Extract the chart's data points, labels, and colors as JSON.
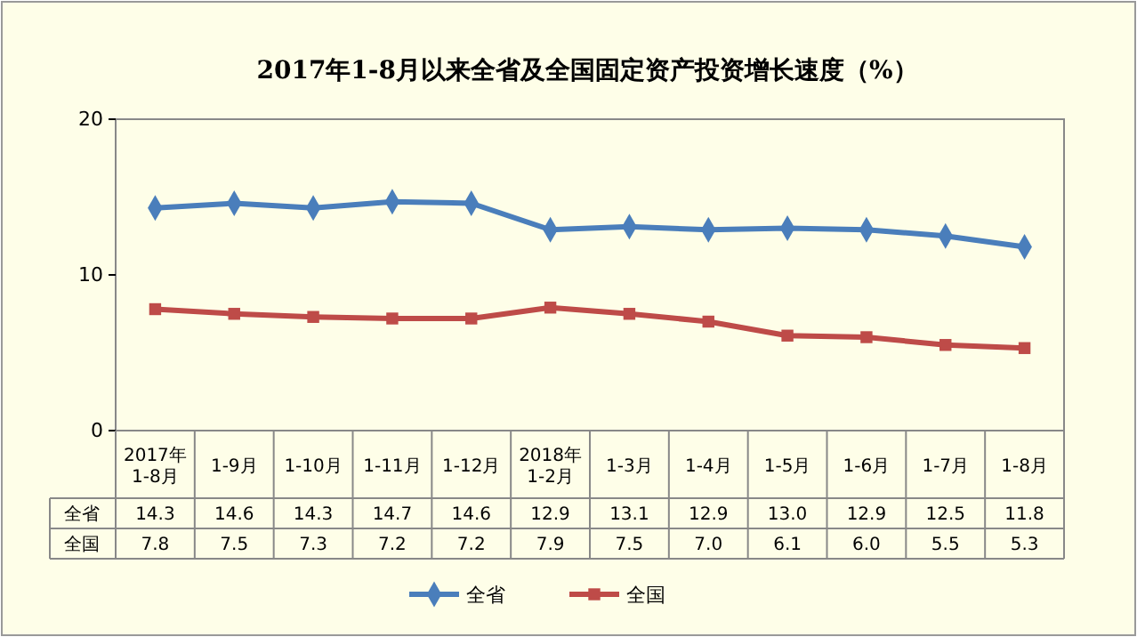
{
  "chart_data": {
    "type": "line",
    "title": "2017年1-8月以来全省及全国固定资产投资增长速度（%）",
    "categories": [
      "2017年\n1-8月",
      "1-9月",
      "1-10月",
      "1-11月",
      "1-12月",
      "2018年\n1-2月",
      "1-3月",
      "1-4月",
      "1-5月",
      "1-6月",
      "1-7月",
      "1-8月"
    ],
    "series": [
      {
        "name": "全省",
        "color": "#4a7ebb",
        "marker": "diamond",
        "values": [
          14.3,
          14.6,
          14.3,
          14.7,
          14.6,
          12.9,
          13.1,
          12.9,
          13.0,
          12.9,
          12.5,
          11.8
        ],
        "value_labels": [
          "14.3",
          "14.6",
          "14.3",
          "14.7",
          "14.6",
          "12.9",
          "13.1",
          "12.9",
          "13.0",
          "12.9",
          "12.5",
          "11.8"
        ]
      },
      {
        "name": "全国",
        "color": "#be4b48",
        "marker": "square",
        "values": [
          7.8,
          7.5,
          7.3,
          7.2,
          7.2,
          7.9,
          7.5,
          7.0,
          6.1,
          6.0,
          5.5,
          5.3
        ],
        "value_labels": [
          "7.8",
          "7.5",
          "7.3",
          "7.2",
          "7.2",
          "7.9",
          "7.5",
          "7.0",
          "6.1",
          "6.0",
          "5.5",
          "5.3"
        ]
      }
    ],
    "ylim": [
      0,
      20
    ],
    "yticks": [
      0,
      10,
      20
    ],
    "grid": false,
    "legend": "bottom",
    "line_style": "solid"
  }
}
